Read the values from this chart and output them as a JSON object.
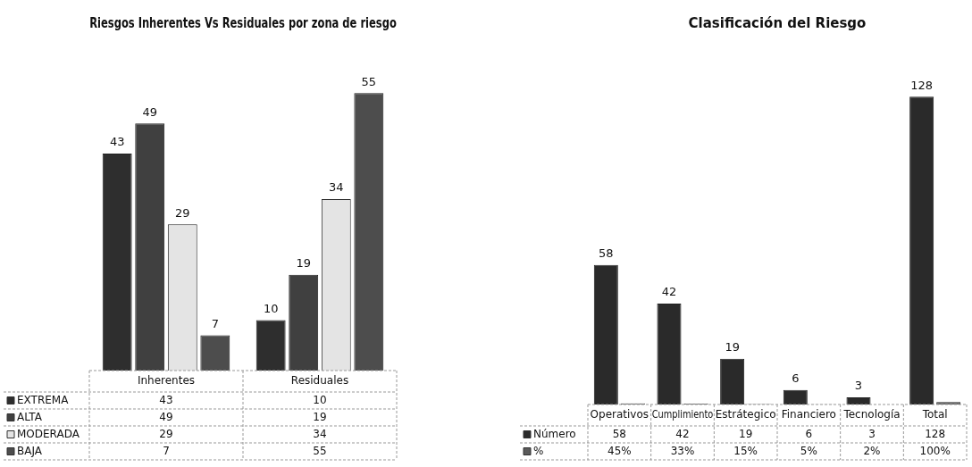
{
  "chart_data": [
    {
      "type": "bar",
      "title": "Riesgos Inherentes Vs Residuales por zona de riesgo",
      "categories": [
        "Inherentes",
        "Residuales"
      ],
      "data_labels": true,
      "legend": "bottom",
      "series": [
        {
          "name": "EXTREMA",
          "color": "#2e2e2e",
          "values": [
            43,
            10
          ]
        },
        {
          "name": "ALTA",
          "color": "#404040",
          "values": [
            49,
            19
          ]
        },
        {
          "name": "MODERADA",
          "color": "#e4e4e4",
          "values": [
            29,
            34
          ]
        },
        {
          "name": "BAJA",
          "color": "#4d4d4d",
          "values": [
            7,
            55
          ]
        }
      ],
      "annotations": [
        "43",
        "49",
        "29",
        "7",
        "10",
        "19",
        "34",
        "55"
      ]
    },
    {
      "type": "bar",
      "title": "Clasificación del Riesgo",
      "categories": [
        "Operativos",
        "Cumplimiento",
        "Estrátegico",
        "Financiero",
        "Tecnología",
        "Total"
      ],
      "data_labels": true,
      "legend": "bottom",
      "series": [
        {
          "name": "Número",
          "color": "#2a2a2a",
          "values": [
            58,
            42,
            19,
            6,
            3,
            128
          ]
        },
        {
          "name": "%",
          "color": "#5a5a5a",
          "values": [
            0.45,
            0.33,
            0.15,
            0.05,
            0.02,
            1
          ],
          "value_labels": [
            "45%",
            "33%",
            "15%",
            "5%",
            "2%",
            "100%"
          ]
        }
      ],
      "annotations": [
        {
          "text": "58",
          "x": "Operativos",
          "y": 58
        },
        {
          "text": "42",
          "x": "Cumplimiento",
          "y": 42
        },
        {
          "text": "19",
          "x": "Estrátegico",
          "y": 19
        },
        {
          "text": "6",
          "x": "Financiero",
          "y": 6
        },
        {
          "text": "3",
          "x": "Tecnología",
          "y": 3
        },
        {
          "text": "128",
          "x": "Total",
          "y": 128
        }
      ]
    }
  ]
}
